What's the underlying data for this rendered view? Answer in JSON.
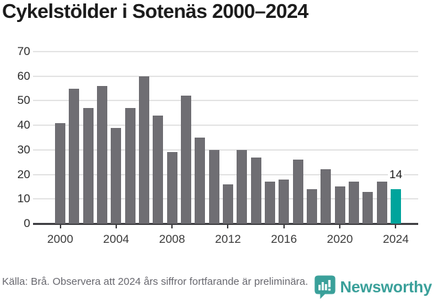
{
  "title": "Cykelstölder i Sotenäs 2000–2024",
  "chart_data": {
    "type": "bar",
    "title": "Cykelstölder i Sotenäs 2000–2024",
    "categories": [
      2000,
      2001,
      2002,
      2003,
      2004,
      2005,
      2006,
      2007,
      2008,
      2009,
      2010,
      2011,
      2012,
      2013,
      2014,
      2015,
      2016,
      2017,
      2018,
      2019,
      2020,
      2021,
      2022,
      2023,
      2024
    ],
    "values": [
      41,
      55,
      47,
      56,
      39,
      47,
      60,
      44,
      29,
      52,
      35,
      30,
      16,
      30,
      27,
      17,
      18,
      26,
      14,
      22,
      15,
      17,
      13,
      17,
      14
    ],
    "xlabel": "",
    "ylabel": "",
    "ylim": [
      0,
      70
    ],
    "yticks": [
      0,
      10,
      20,
      30,
      40,
      50,
      60,
      70
    ],
    "xticks": [
      2000,
      2004,
      2008,
      2012,
      2016,
      2020,
      2024
    ],
    "grid": true,
    "legend": "none",
    "bar_color": "#6f6e73",
    "highlight_color": "#00a49c",
    "highlight": {
      "year": 2024,
      "label": "14"
    }
  },
  "footer": {
    "source_text": "Källa: Brå. Observera att 2024 års siffror fortfarande är preliminära.",
    "brand": "Newsworthy",
    "brand_color": "#3aa09a"
  }
}
